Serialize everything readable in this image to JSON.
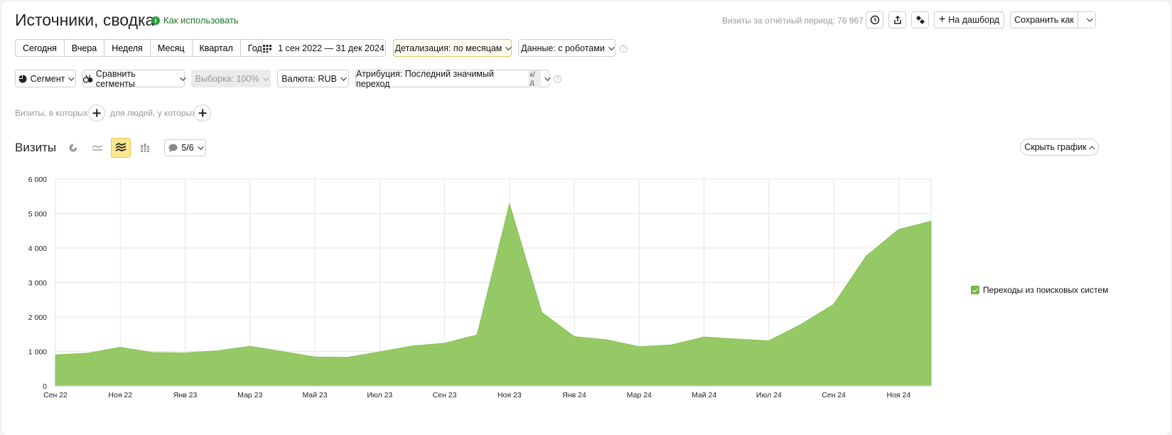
{
  "header": {
    "title": "Источники, сводка",
    "howto_label": "Как использовать",
    "visits_total": "Визиты за отчётный период: 76 967",
    "dashboard_label": "На дашборд",
    "save_as_label": "Сохранить как"
  },
  "periods": [
    "Сегодня",
    "Вчера",
    "Неделя",
    "Месяц",
    "Квартал",
    "Год"
  ],
  "date_range": "1 сен 2022 — 31 дек 2024",
  "detail_label": "Детализация: по месяцам",
  "robots_label": "Данные: с роботами",
  "filters": {
    "segment": "Сегмент",
    "compare": "Сравнить сегменты",
    "sample": "Выборка: 100%",
    "currency": "Валюта: RUB",
    "attribution": "Атрибуция: Последний значимый переход",
    "attribution_badge": "к/д"
  },
  "conditions": {
    "visits_label": "Визиты, в которых",
    "people_label": "для людей, у которых"
  },
  "chart_header": {
    "title": "Визиты",
    "series_count": "5/6",
    "hide_label": "Скрыть график"
  },
  "colors": {
    "area": "#95c965",
    "accent_yellow": "#fde68f",
    "green_link": "#1b7a2a"
  },
  "chart_data": {
    "type": "area",
    "x": [
      "Сен 22",
      "Окт 22",
      "Ноя 22",
      "Дек 22",
      "Янв 23",
      "Фев 23",
      "Мар 23",
      "Апр 23",
      "Май 23",
      "Июн 23",
      "Июл 23",
      "Авг 23",
      "Сен 23",
      "Окт 23",
      "Ноя 23",
      "Дек 23",
      "Янв 24",
      "Фев 24",
      "Мар 24",
      "Апр 24",
      "Май 24",
      "Июн 24",
      "Июл 24",
      "Авг 24",
      "Сен 24",
      "Окт 24",
      "Ноя 24",
      "Дек 24"
    ],
    "tick_labels": [
      "Сен 22",
      "Ноя 22",
      "Янв 23",
      "Мар 23",
      "Май 23",
      "Июл 23",
      "Сен 23",
      "Ноя 23",
      "Янв 24",
      "Мар 24",
      "Май 24",
      "Июл 24",
      "Сен 24",
      "Ноя 24"
    ],
    "series": [
      {
        "name": "Переходы из поисковых систем",
        "values": [
          900,
          950,
          1120,
          970,
          960,
          1020,
          1150,
          1000,
          840,
          830,
          990,
          1160,
          1240,
          1480,
          5280,
          2130,
          1430,
          1340,
          1140,
          1190,
          1420,
          1360,
          1310,
          1790,
          2370,
          3770,
          4540,
          4780
        ]
      }
    ],
    "y_ticks": [
      "0",
      "1 000",
      "2 000",
      "3 000",
      "4 000",
      "5 000",
      "6 000"
    ],
    "ylim": [
      0,
      6000
    ],
    "grid": true,
    "legend": "right"
  }
}
